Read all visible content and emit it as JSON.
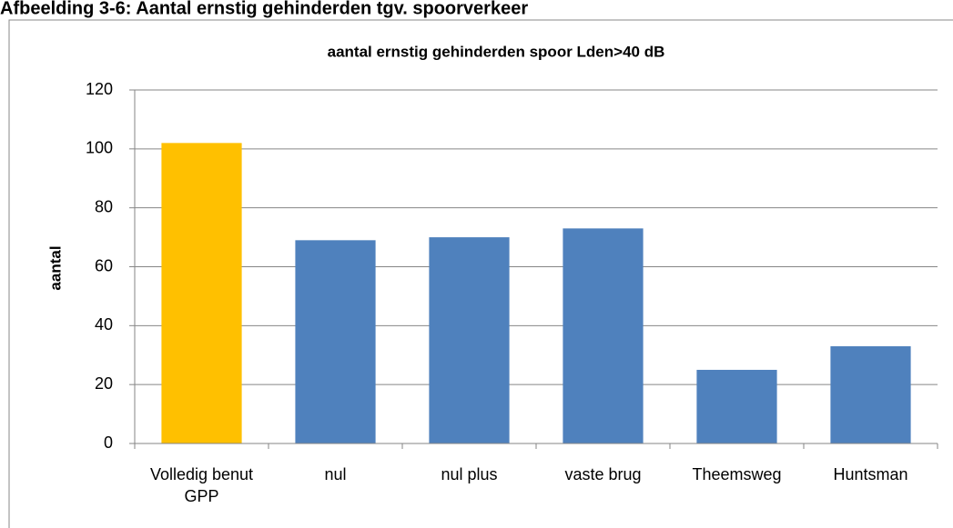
{
  "chart_data": {
    "type": "bar",
    "caption": "Afbeelding 3-6: Aantal ernstig gehinderden tgv. spoorverkeer",
    "title": "aantal ernstig gehinderden spoor Lden>40 dB",
    "y_label": "aantal",
    "categories": [
      "Volledig benut GPP",
      "nul",
      "nul plus",
      "vaste brug",
      "Theemsweg",
      "Huntsman"
    ],
    "values": [
      102,
      69,
      70,
      73,
      25,
      33
    ],
    "colors": [
      "#FFC000",
      "#4F81BD",
      "#4F81BD",
      "#4F81BD",
      "#4F81BD",
      "#4F81BD"
    ],
    "ylim": [
      0,
      120
    ],
    "yticks": [
      0,
      20,
      40,
      60,
      80,
      100,
      120
    ],
    "grid": true
  }
}
